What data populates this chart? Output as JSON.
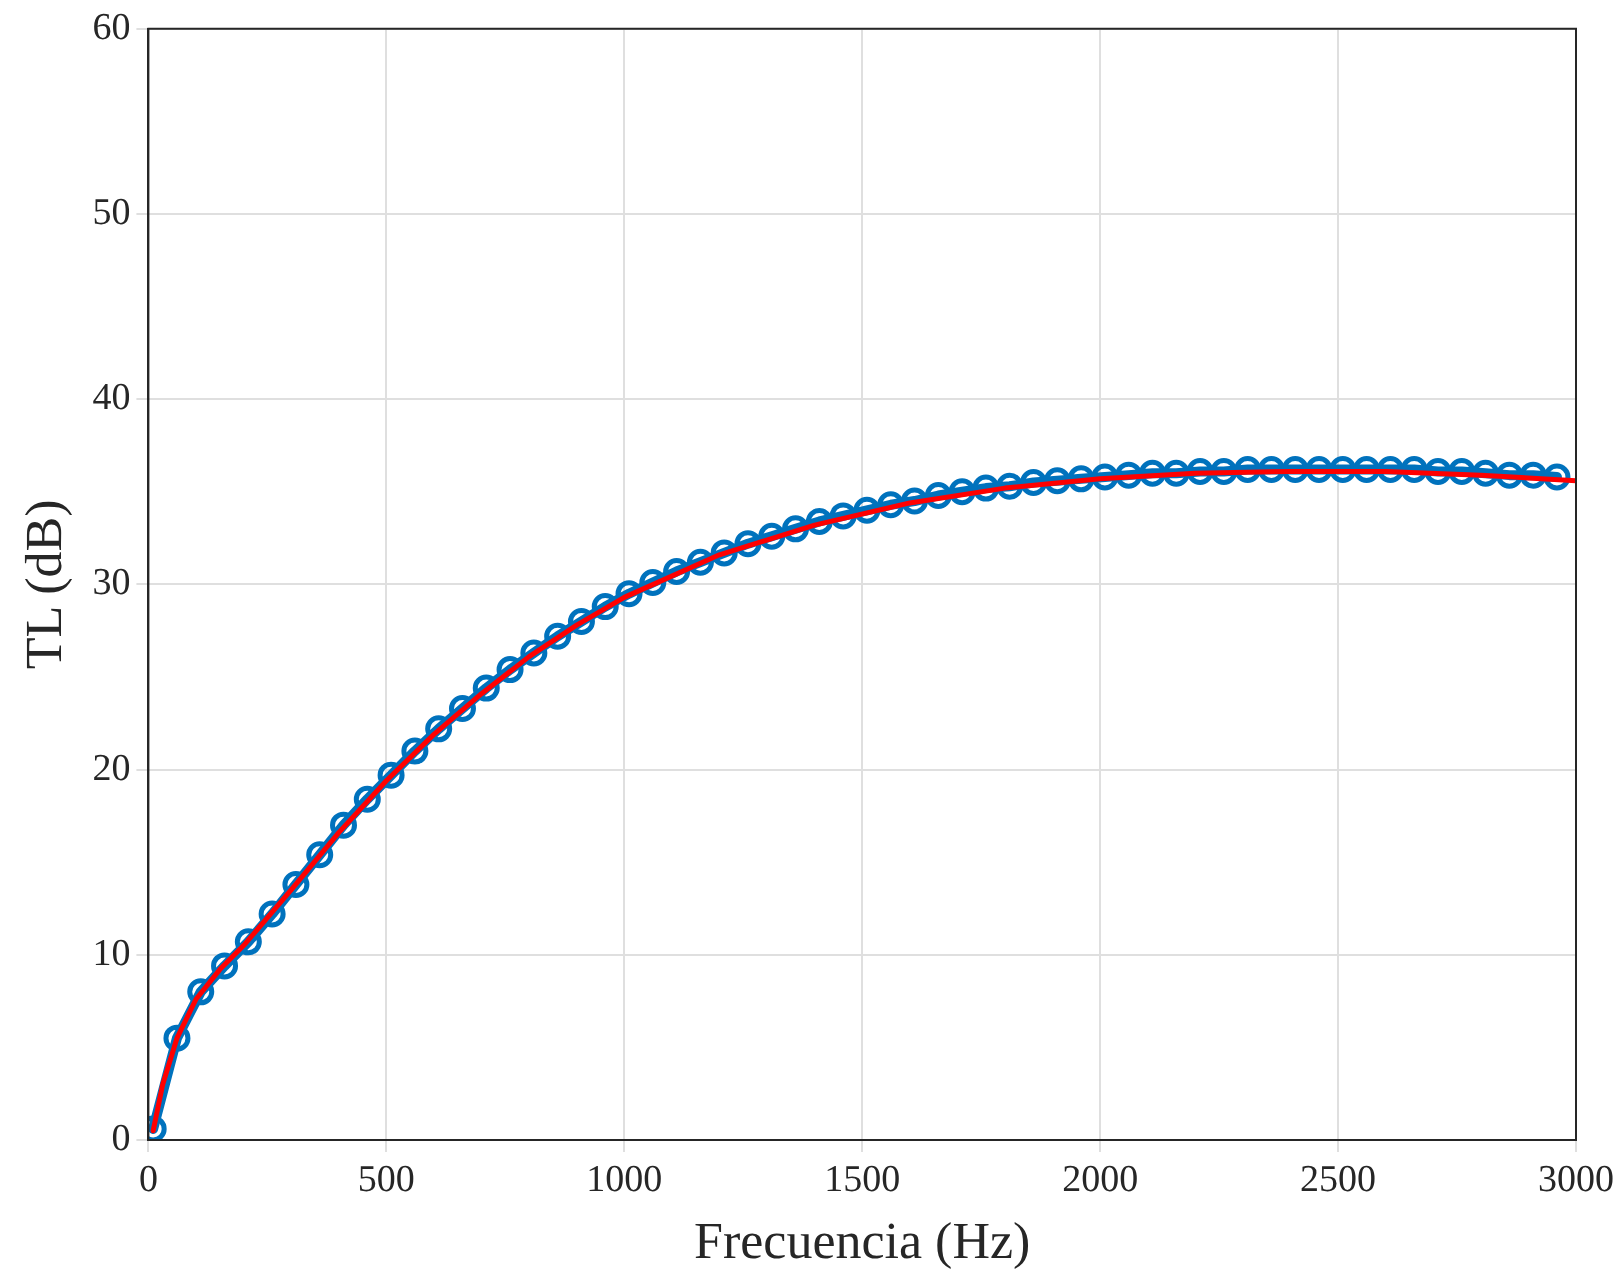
{
  "chart_data": {
    "type": "line",
    "xlabel": "Frecuencia (Hz)",
    "ylabel": "TL (dB)",
    "xlim": [
      0,
      3000
    ],
    "xticks": [
      0,
      500,
      1000,
      1500,
      2000,
      2500,
      3000
    ],
    "ylim": [
      0,
      60
    ],
    "yticks": [
      0,
      10,
      20,
      30,
      40,
      50,
      60
    ],
    "grid": true,
    "series": [
      {
        "color": "#0072bd",
        "marker": "circle",
        "x": [
          10,
          60,
          110,
          160,
          210,
          260,
          310,
          360,
          410,
          460,
          510,
          560,
          610,
          660,
          710,
          760,
          810,
          860,
          910,
          960,
          1010,
          1060,
          1110,
          1160,
          1210,
          1260,
          1310,
          1360,
          1410,
          1460,
          1510,
          1560,
          1610,
          1660,
          1710,
          1760,
          1810,
          1860,
          1910,
          1960,
          2010,
          2060,
          2110,
          2160,
          2210,
          2260,
          2310,
          2360,
          2410,
          2460,
          2510,
          2560,
          2610,
          2660,
          2710,
          2760,
          2810,
          2860,
          2910,
          2960
        ],
        "values": [
          0.6,
          5.5,
          8.0,
          9.4,
          10.7,
          12.2,
          13.8,
          15.4,
          17.0,
          18.4,
          19.7,
          21.0,
          22.2,
          23.3,
          24.4,
          25.4,
          26.3,
          27.2,
          28.0,
          28.8,
          29.5,
          30.1,
          30.7,
          31.2,
          31.7,
          32.2,
          32.6,
          33.0,
          33.4,
          33.7,
          34.0,
          34.3,
          34.5,
          34.8,
          35.0,
          35.2,
          35.3,
          35.5,
          35.6,
          35.7,
          35.8,
          35.9,
          36.0,
          36.0,
          36.1,
          36.1,
          36.2,
          36.2,
          36.2,
          36.2,
          36.2,
          36.2,
          36.2,
          36.2,
          36.1,
          36.1,
          36.0,
          35.9,
          35.9,
          35.8
        ]
      },
      {
        "color": "#ff0000",
        "x": [
          10,
          30,
          60,
          100,
          150,
          200,
          300,
          400,
          500,
          600,
          700,
          800,
          900,
          1000,
          1200,
          1400,
          1600,
          1800,
          2000,
          2200,
          2400,
          2600,
          2800,
          3000
        ],
        "values": [
          0.5,
          3.0,
          5.5,
          7.6,
          9.2,
          10.5,
          13.5,
          16.6,
          19.4,
          21.9,
          24.1,
          26.1,
          27.8,
          29.3,
          31.6,
          33.2,
          34.4,
          35.2,
          35.7,
          36.0,
          36.1,
          36.1,
          35.9,
          35.6
        ]
      }
    ]
  }
}
